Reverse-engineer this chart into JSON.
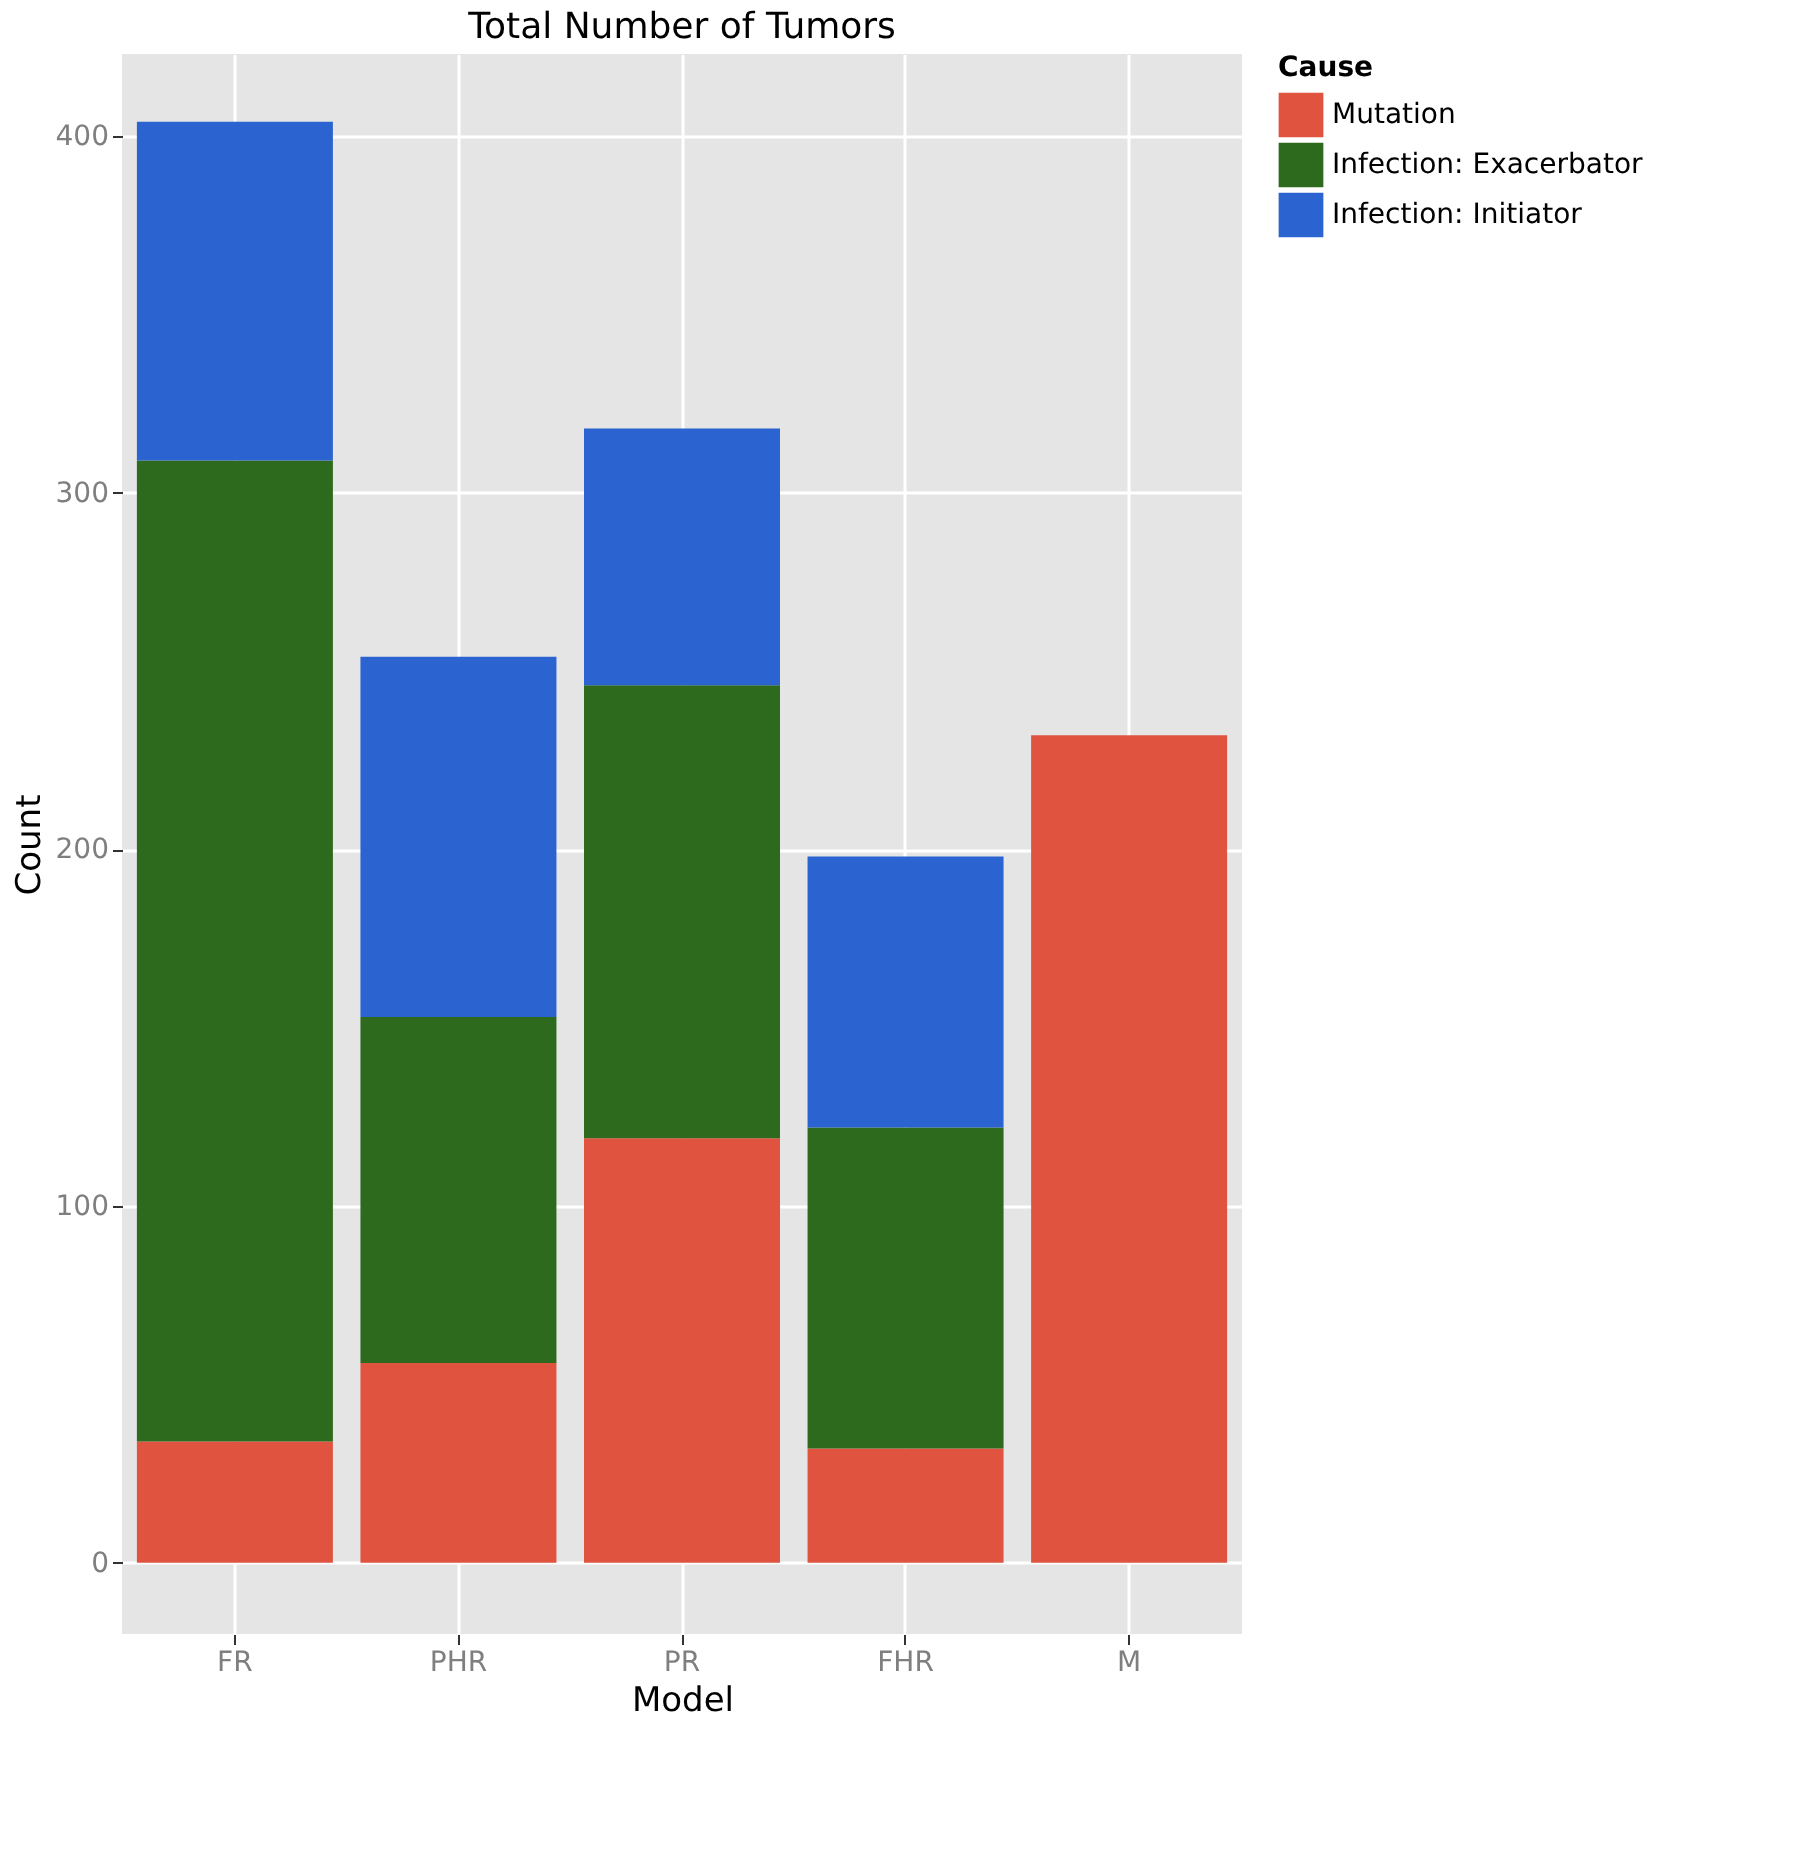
{
  "chart_data": {
    "type": "bar",
    "title": "Total Number of Tumors",
    "xlabel": "Model",
    "ylabel": "Count",
    "legend_title": "Cause",
    "categories": [
      "FR",
      "PHR",
      "PR",
      "FHR",
      "M"
    ],
    "series": [
      {
        "name": "Mutation",
        "color": "#e0533f",
        "values": [
          34,
          56,
          119,
          32,
          232
        ]
      },
      {
        "name": "Infection: Exacerbator",
        "color": "#2d6a1e",
        "values": [
          275,
          97,
          127,
          90,
          0
        ]
      },
      {
        "name": "Infection: Initiator",
        "color": "#2b63d1",
        "values": [
          95,
          101,
          72,
          76,
          0
        ]
      }
    ],
    "stacked": true,
    "ylim": [
      -20,
      423
    ],
    "yticks": [
      0,
      100,
      200,
      300,
      400
    ],
    "grid": true,
    "legend": "right"
  }
}
